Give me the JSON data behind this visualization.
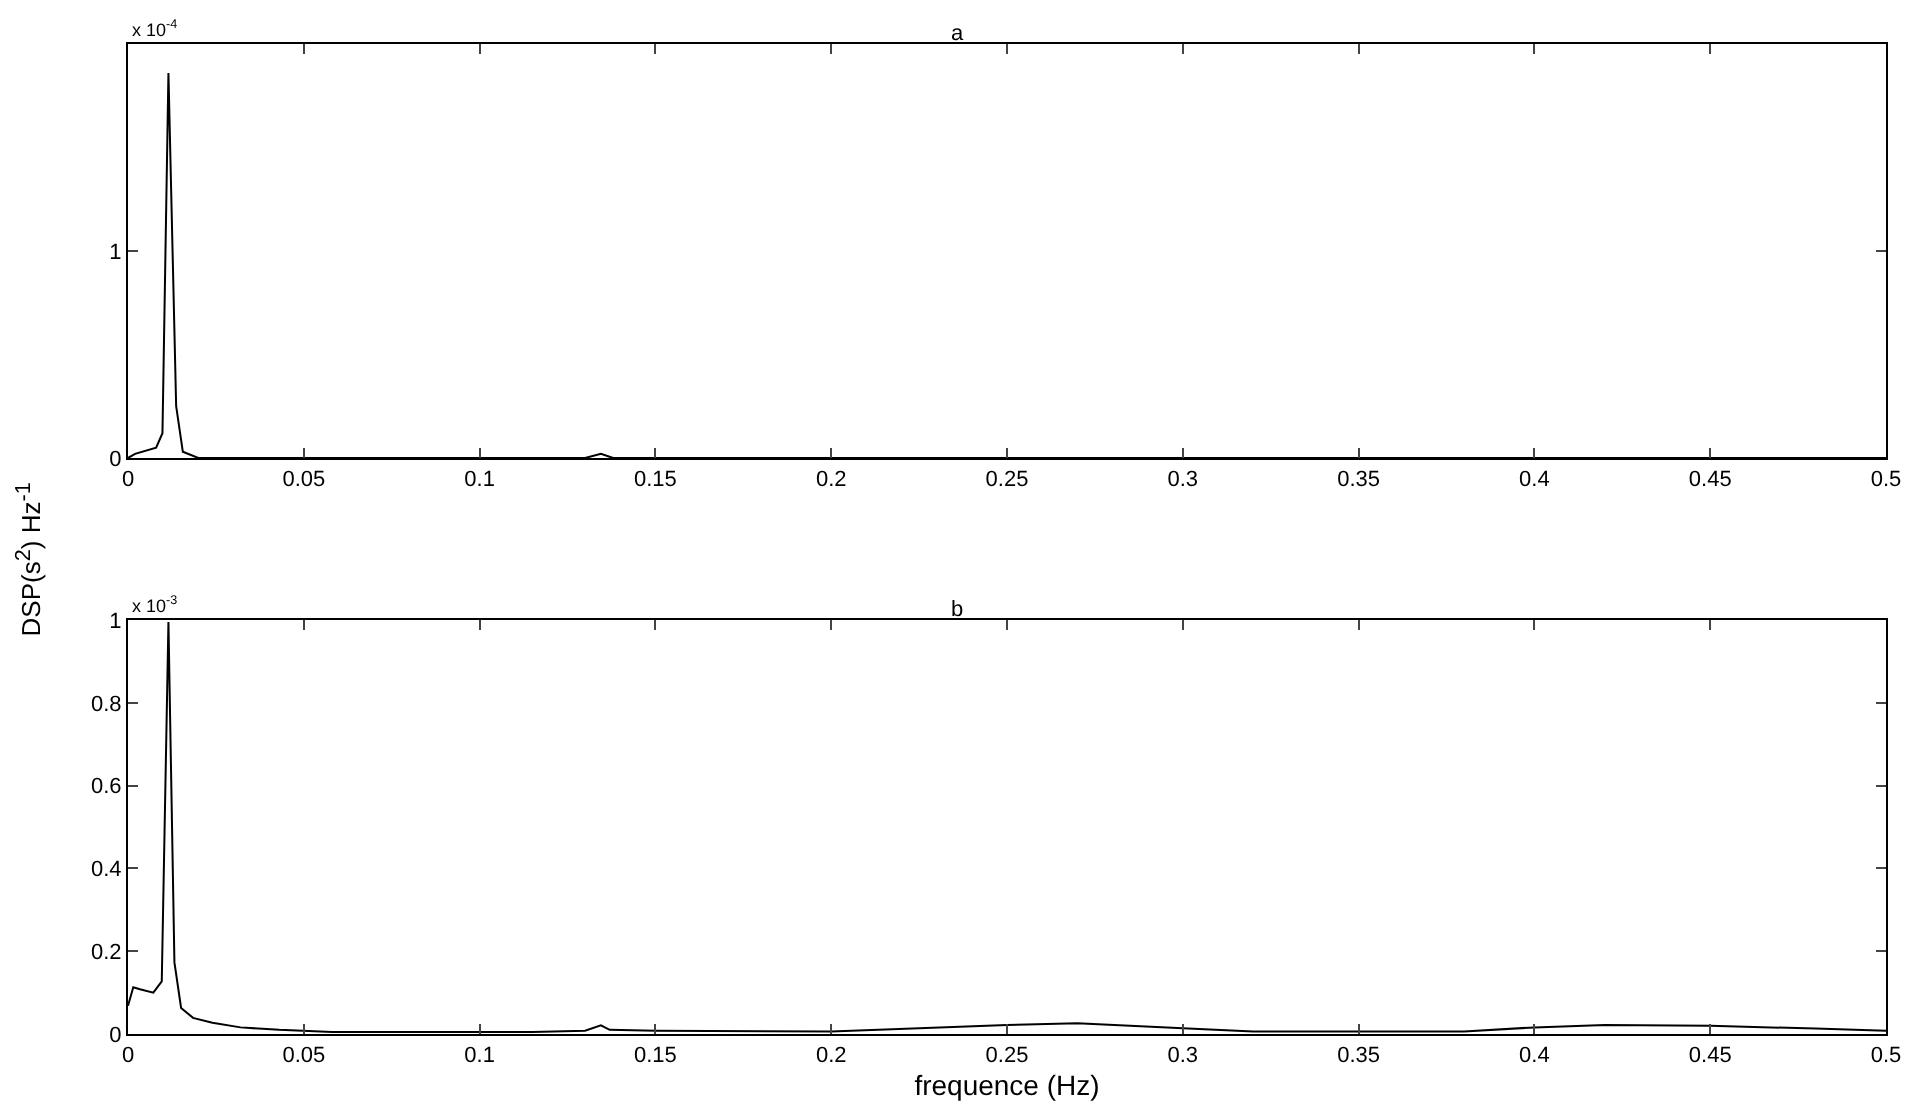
{
  "chart_data": [
    {
      "type": "line",
      "title": "a",
      "annotations": [
        "x 10$^{-4}$"
      ],
      "series": [
        {
          "color": "#000000",
          "x": [
            0,
            0.002,
            0.008,
            0.0098,
            0.0115,
            0.0137,
            0.0156,
            0.02,
            0.13,
            0.1345,
            0.138,
            0.5
          ],
          "values": [
            0,
            0.02,
            0.05,
            0.12,
            1.86,
            0.25,
            0.03,
            0,
            0,
            0.02,
            0,
            0
          ]
        }
      ],
      "xlim": [
        0,
        0.5
      ],
      "xticks": [
        0,
        0.05,
        0.1,
        0.15,
        0.2,
        0.25,
        0.3,
        0.35,
        0.4,
        0.45,
        0.5
      ],
      "ylim": [
        0,
        2
      ],
      "yticks": [
        0,
        1
      ],
      "grid": false,
      "line_style": "solid",
      "marker": "none"
    },
    {
      "type": "line",
      "title": "b",
      "xlabel": "frequence (Hz)",
      "ylabel": "DSP(s$^{2}$) Hz$^{-1}$",
      "annotations": [
        "x 10$^{-3}$"
      ],
      "series": [
        {
          "color": "#000000",
          "x": [
            0,
            0.0015,
            0.0034,
            0.0072,
            0.0096,
            0.0115,
            0.0132,
            0.0151,
            0.0185,
            0.024,
            0.032,
            0.043,
            0.058,
            0.115,
            0.13,
            0.1345,
            0.137,
            0.15,
            0.2,
            0.25,
            0.27,
            0.3,
            0.32,
            0.38,
            0.4,
            0.42,
            0.45,
            0.48,
            0.5
          ],
          "values": [
            0.068,
            0.113,
            0.108,
            0.1,
            0.127,
            0.995,
            0.173,
            0.063,
            0.039,
            0.027,
            0.016,
            0.01,
            0.005,
            0.005,
            0.008,
            0.021,
            0.01,
            0.008,
            0.006,
            0.022,
            0.026,
            0.014,
            0.006,
            0.006,
            0.016,
            0.022,
            0.02,
            0.013,
            0.008
          ]
        }
      ],
      "xlim": [
        0,
        0.5
      ],
      "xticks": [
        0,
        0.05,
        0.1,
        0.15,
        0.2,
        0.25,
        0.3,
        0.35,
        0.4,
        0.45,
        0.5
      ],
      "ylim": [
        0,
        1
      ],
      "yticks": [
        0,
        0.2,
        0.4,
        0.6,
        0.8,
        1
      ],
      "grid": false,
      "line_style": "solid",
      "marker": "none"
    }
  ]
}
